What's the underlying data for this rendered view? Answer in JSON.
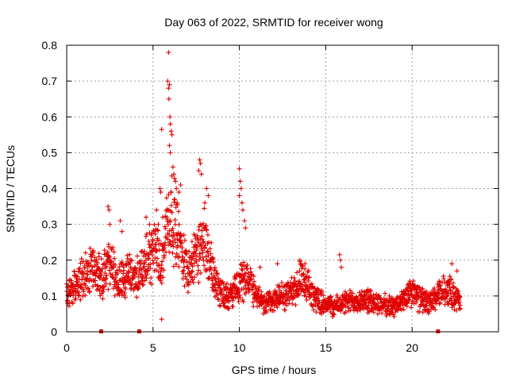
{
  "chart_data": {
    "type": "scatter",
    "title": "Day 063 of 2022, SRMTID for receiver wong",
    "xlabel": "GPS time / hours",
    "ylabel": "SRMTID / TECUs",
    "xlim": [
      0,
      25
    ],
    "ylim": [
      0,
      0.8
    ],
    "x_ticks": [
      "0",
      "5",
      "10",
      "15",
      "20"
    ],
    "y_ticks": [
      "0",
      "0.1",
      "0.2",
      "0.3",
      "0.4",
      "0.5",
      "0.6",
      "0.7",
      "0.8"
    ],
    "grid": true,
    "marker": "+",
    "series_color": "#e00000",
    "trend": [
      [
        0.0,
        0.1
      ],
      [
        0.5,
        0.13
      ],
      [
        1.0,
        0.16
      ],
      [
        1.5,
        0.18
      ],
      [
        2.0,
        0.15
      ],
      [
        2.5,
        0.19
      ],
      [
        3.0,
        0.14
      ],
      [
        3.5,
        0.16
      ],
      [
        4.0,
        0.15
      ],
      [
        4.5,
        0.18
      ],
      [
        5.0,
        0.23
      ],
      [
        5.5,
        0.21
      ],
      [
        5.8,
        0.3
      ],
      [
        6.1,
        0.33
      ],
      [
        6.5,
        0.25
      ],
      [
        7.0,
        0.18
      ],
      [
        7.5,
        0.21
      ],
      [
        8.0,
        0.26
      ],
      [
        8.5,
        0.15
      ],
      [
        9.0,
        0.11
      ],
      [
        9.5,
        0.1
      ],
      [
        10.0,
        0.13
      ],
      [
        10.5,
        0.16
      ],
      [
        11.0,
        0.1
      ],
      [
        11.5,
        0.08
      ],
      [
        12.0,
        0.09
      ],
      [
        12.5,
        0.1
      ],
      [
        13.0,
        0.11
      ],
      [
        13.5,
        0.14
      ],
      [
        14.0,
        0.12
      ],
      [
        14.5,
        0.09
      ],
      [
        15.0,
        0.08
      ],
      [
        15.5,
        0.07
      ],
      [
        16.0,
        0.08
      ],
      [
        17.0,
        0.09
      ],
      [
        18.0,
        0.08
      ],
      [
        19.0,
        0.07
      ],
      [
        19.5,
        0.09
      ],
      [
        20.0,
        0.11
      ],
      [
        20.5,
        0.09
      ],
      [
        21.0,
        0.08
      ],
      [
        21.5,
        0.1
      ],
      [
        22.0,
        0.12
      ],
      [
        22.5,
        0.1
      ],
      [
        22.8,
        0.08
      ]
    ],
    "peaks": [
      [
        2.4,
        0.35
      ],
      [
        2.45,
        0.34
      ],
      [
        2.5,
        0.3
      ],
      [
        3.1,
        0.31
      ],
      [
        3.2,
        0.28
      ],
      [
        4.6,
        0.32
      ],
      [
        4.8,
        0.3
      ],
      [
        5.2,
        0.34
      ],
      [
        5.3,
        0.3
      ],
      [
        5.4,
        0.4
      ],
      [
        5.45,
        0.39
      ],
      [
        5.5,
        0.565
      ],
      [
        5.5,
        0.035
      ],
      [
        5.9,
        0.78
      ],
      [
        5.85,
        0.7
      ],
      [
        5.95,
        0.69
      ],
      [
        5.9,
        0.68
      ],
      [
        5.92,
        0.65
      ],
      [
        5.98,
        0.6
      ],
      [
        6.0,
        0.58
      ],
      [
        6.05,
        0.56
      ],
      [
        6.1,
        0.55
      ],
      [
        5.95,
        0.52
      ],
      [
        6.0,
        0.5
      ],
      [
        6.15,
        0.46
      ],
      [
        6.2,
        0.44
      ],
      [
        6.3,
        0.42
      ],
      [
        6.35,
        0.4
      ],
      [
        6.5,
        0.39
      ],
      [
        6.6,
        0.41
      ],
      [
        6.4,
        0.36
      ],
      [
        7.7,
        0.48
      ],
      [
        7.75,
        0.47
      ],
      [
        7.65,
        0.45
      ],
      [
        7.8,
        0.44
      ],
      [
        8.1,
        0.4
      ],
      [
        8.2,
        0.38
      ],
      [
        8.0,
        0.36
      ],
      [
        10.0,
        0.455
      ],
      [
        10.05,
        0.42
      ],
      [
        10.1,
        0.4
      ],
      [
        10.0,
        0.38
      ],
      [
        10.15,
        0.36
      ],
      [
        10.2,
        0.34
      ],
      [
        10.3,
        0.31
      ],
      [
        10.35,
        0.29
      ],
      [
        15.8,
        0.215
      ],
      [
        15.85,
        0.2
      ],
      [
        15.9,
        0.18
      ],
      [
        13.5,
        0.2
      ],
      [
        13.8,
        0.19
      ],
      [
        22.3,
        0.19
      ],
      [
        22.6,
        0.17
      ],
      [
        11.2,
        0.18
      ],
      [
        12.2,
        0.19
      ]
    ],
    "gap_markers_x": [
      2.0,
      4.2,
      21.5
    ]
  }
}
